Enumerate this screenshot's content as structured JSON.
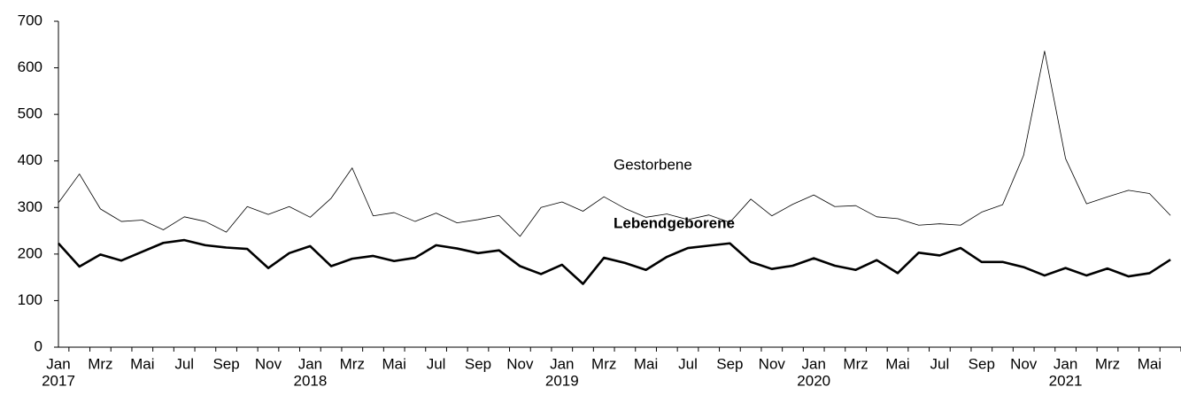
{
  "chart_data": {
    "type": "line",
    "categories": [
      "Jan",
      null,
      "Mrz",
      null,
      "Mai",
      null,
      "Jul",
      null,
      "Sep",
      null,
      "Nov",
      null,
      "Jan",
      null,
      "Mrz",
      null,
      "Mai",
      null,
      "Jul",
      null,
      "Sep",
      null,
      "Nov",
      null,
      "Jan",
      null,
      "Mrz",
      null,
      "Mai",
      null,
      "Jul",
      null,
      "Sep",
      null,
      "Nov",
      null,
      "Jan",
      null,
      "Mrz",
      null,
      "Mai",
      null,
      "Jul",
      null,
      "Sep",
      null,
      "Nov",
      null,
      "Jan",
      null,
      "Mrz",
      null,
      "Mai",
      null
    ],
    "years": [
      "2017",
      "2018",
      "2019",
      "2020",
      "2021"
    ],
    "series": [
      {
        "name": "Gestorbene",
        "color": "#000000",
        "width": 0.8,
        "bold": false,
        "values": [
          310,
          372,
          297,
          270,
          273,
          252,
          280,
          270,
          247,
          302,
          285,
          302,
          279,
          320,
          385,
          282,
          289,
          270,
          288,
          267,
          274,
          283,
          238,
          300,
          312,
          292,
          323,
          298,
          279,
          286,
          274,
          284,
          268,
          318,
          282,
          307,
          327,
          302,
          304,
          280,
          276,
          262,
          265,
          262,
          290,
          306,
          412,
          636,
          405,
          308,
          323,
          337,
          330,
          283
        ]
      },
      {
        "name": "Lebendgeborene",
        "color": "#000000",
        "width": 2.6,
        "bold": true,
        "values": [
          223,
          173,
          199,
          186,
          205,
          224,
          230,
          219,
          214,
          211,
          170,
          202,
          217,
          174,
          190,
          196,
          185,
          192,
          219,
          212,
          202,
          208,
          174,
          157,
          177,
          136,
          192,
          181,
          166,
          194,
          213,
          218,
          223,
          183,
          168,
          175,
          191,
          175,
          166,
          187,
          159,
          203,
          197,
          213,
          183,
          183,
          172,
          154,
          170,
          154,
          169,
          152,
          159,
          188
        ]
      }
    ],
    "ylim": [
      0,
      700
    ],
    "yticks": [
      0,
      100,
      200,
      300,
      400,
      500,
      600,
      700
    ],
    "grid": false
  }
}
